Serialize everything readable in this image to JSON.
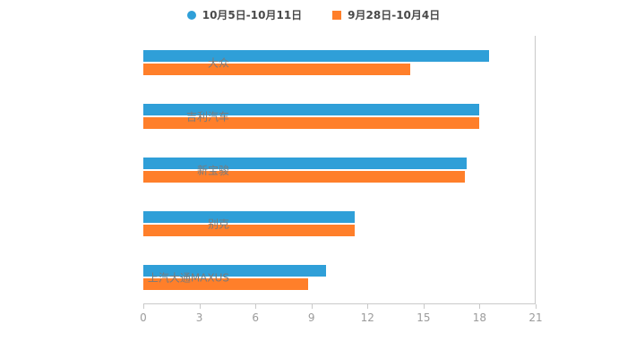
{
  "chart_data": {
    "type": "bar",
    "orientation": "horizontal",
    "title": "",
    "xlabel": "",
    "ylabel": "",
    "categories": [
      "大众",
      "吉利汽车",
      "新宝骏",
      "别克",
      "上汽大通MAXUS"
    ],
    "series": [
      {
        "name": "10月5日-10月11日",
        "color": "#2f9fd8",
        "values": [
          18.5,
          18.0,
          17.3,
          11.3,
          9.8
        ]
      },
      {
        "name": "9月28日-10月4日",
        "color": "#ff7f2a",
        "values": [
          14.3,
          18.0,
          17.2,
          11.3,
          8.8
        ]
      }
    ],
    "xlim": [
      0,
      21
    ],
    "xticks": [
      0,
      3,
      6,
      9,
      12,
      15,
      18,
      21
    ],
    "grid": false,
    "legend_position": "top"
  },
  "legend": {
    "items": [
      {
        "label": "10月5日-10月11日",
        "marker": "circle",
        "color": "#2f9fd8"
      },
      {
        "label": "9月28日-10月4日",
        "marker": "square",
        "color": "#ff7f2a"
      }
    ]
  }
}
